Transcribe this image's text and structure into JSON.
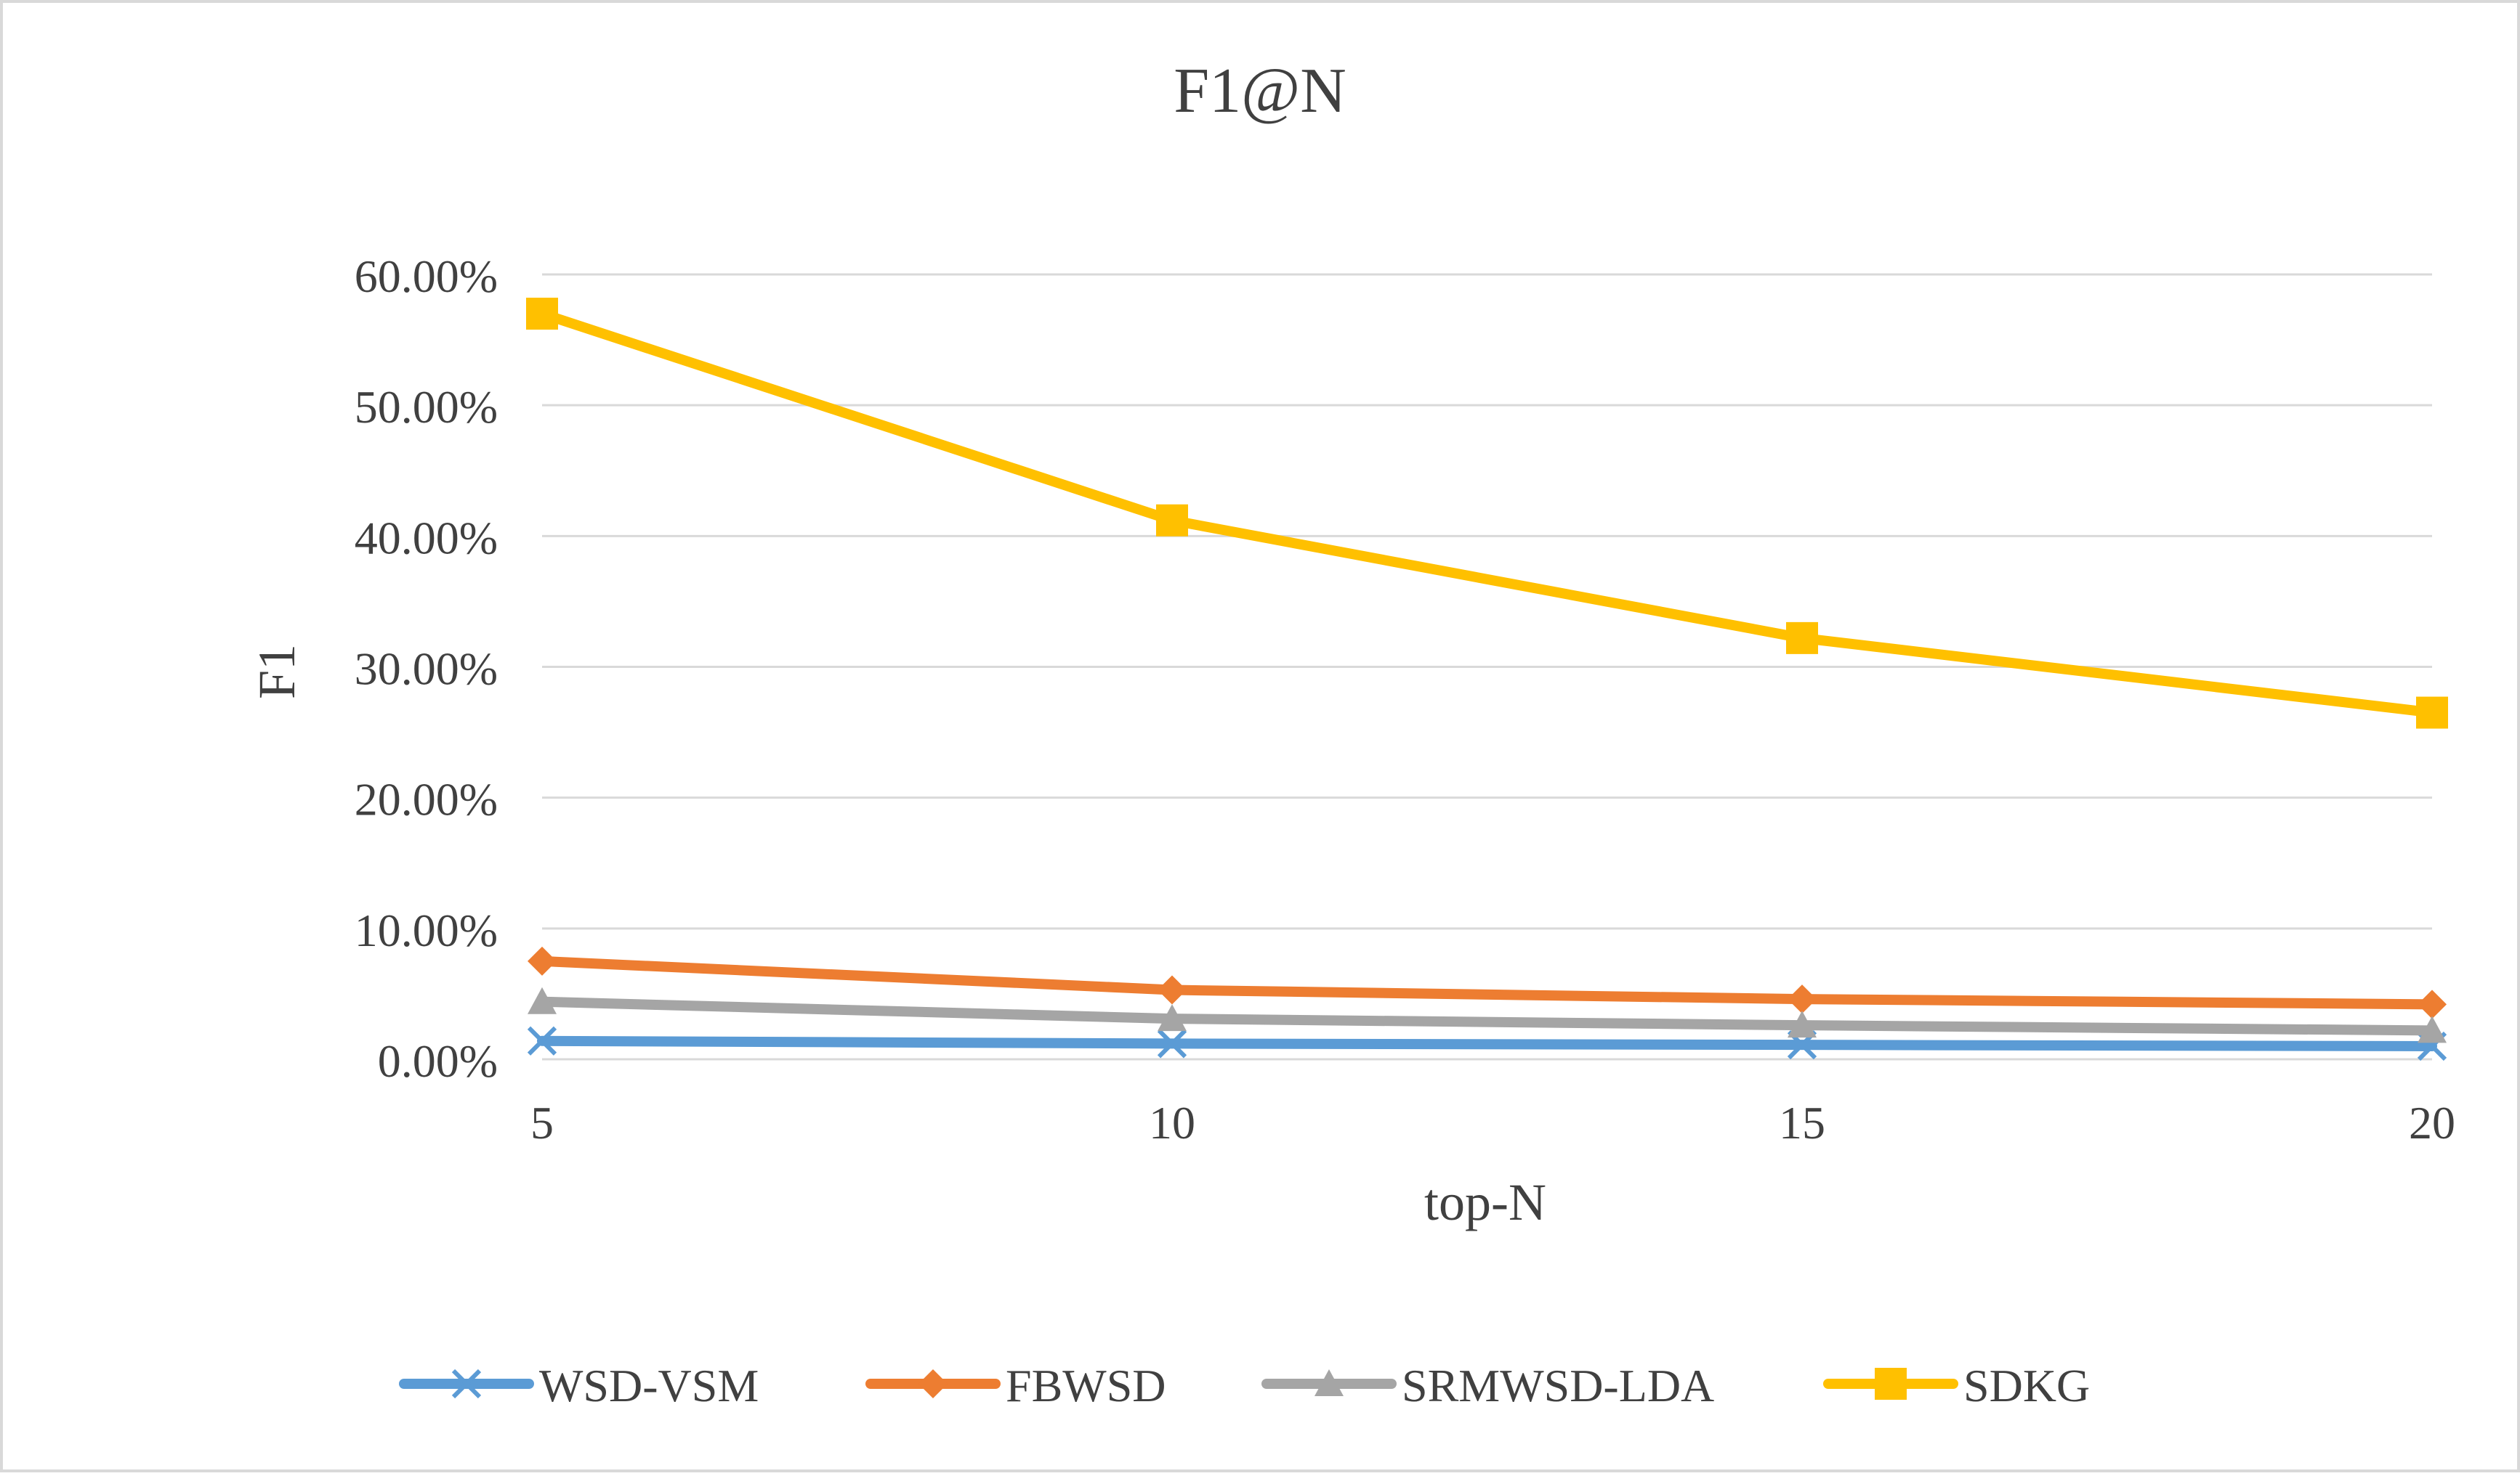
{
  "chart_data": {
    "type": "line",
    "title": "F1@N",
    "xlabel": "top-N",
    "ylabel": "F1",
    "x": [
      5,
      10,
      15,
      20
    ],
    "ylim": [
      0,
      0.6
    ],
    "yticks": [
      "0.00%",
      "10.00%",
      "20.00%",
      "30.00%",
      "40.00%",
      "50.00%",
      "60.00%"
    ],
    "xticks": [
      "5",
      "10",
      "15",
      "20"
    ],
    "grid": "horizontal",
    "legend": "bottom",
    "series": [
      {
        "name": "WSD-VSM",
        "values": [
          0.014,
          0.012,
          0.011,
          0.01
        ],
        "color": "#5B9BD5",
        "marker": "x"
      },
      {
        "name": "FBWSD",
        "values": [
          0.075,
          0.053,
          0.046,
          0.042
        ],
        "color": "#ED7D31",
        "marker": "diamond"
      },
      {
        "name": "SRMWSD-LDA",
        "values": [
          0.044,
          0.031,
          0.026,
          0.022
        ],
        "color": "#A5A5A5",
        "marker": "triangle"
      },
      {
        "name": "SDKG",
        "values": [
          0.57,
          0.412,
          0.322,
          0.265
        ],
        "color": "#FFC000",
        "marker": "square"
      }
    ]
  }
}
